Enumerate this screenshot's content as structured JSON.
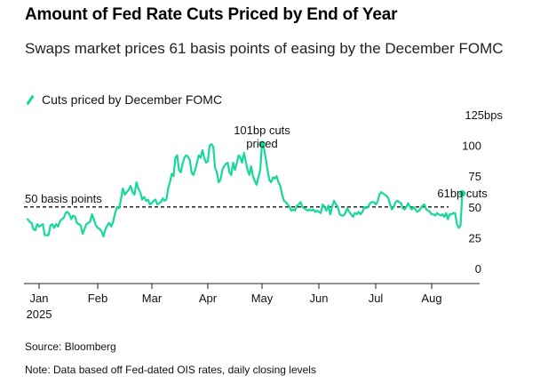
{
  "chart_data": {
    "type": "line",
    "title": "Amount of Fed Rate Cuts Priced by End of Year",
    "subtitle": "Swaps market prices 61 basis points of easing by the December FOMC",
    "legend": [
      "Cuts priced by December FOMC"
    ],
    "y_unit_label": "125bps",
    "y_ticks": [
      0,
      25,
      50,
      75,
      100
    ],
    "ylim": [
      0,
      125
    ],
    "x_ticks": [
      {
        "label": "Jan",
        "day": 8
      },
      {
        "label": "Feb",
        "day": 39
      },
      {
        "label": "Mar",
        "day": 67
      },
      {
        "label": "Apr",
        "day": 98
      },
      {
        "label": "May",
        "day": 128
      },
      {
        "label": "Jun",
        "day": 159
      },
      {
        "label": "Jul",
        "day": 189
      },
      {
        "label": "Aug",
        "day": 220
      }
    ],
    "x_year_label": "2025",
    "xlim": [
      0,
      230
    ],
    "reference_line": {
      "value": 50,
      "label": "50 basis points"
    },
    "series": [
      {
        "name": "Cuts priced by December FOMC",
        "color": "#16d89a",
        "points": [
          [
            2,
            40
          ],
          [
            3,
            38
          ],
          [
            4,
            37
          ],
          [
            5,
            32
          ],
          [
            6,
            31
          ],
          [
            7,
            36
          ],
          [
            8,
            34
          ],
          [
            9,
            35
          ],
          [
            10,
            36
          ],
          [
            11,
            27
          ],
          [
            12,
            27
          ],
          [
            13,
            27
          ],
          [
            14,
            35
          ],
          [
            15,
            36
          ],
          [
            16,
            33
          ],
          [
            17,
            36
          ],
          [
            18,
            34
          ],
          [
            19,
            38
          ],
          [
            20,
            40
          ],
          [
            21,
            41
          ],
          [
            22,
            45
          ],
          [
            23,
            46
          ],
          [
            24,
            44
          ],
          [
            25,
            40
          ],
          [
            26,
            43
          ],
          [
            27,
            42
          ],
          [
            28,
            37
          ],
          [
            29,
            36
          ],
          [
            30,
            35
          ],
          [
            31,
            28
          ],
          [
            32,
            32
          ],
          [
            33,
            36
          ],
          [
            34,
            37
          ],
          [
            35,
            38
          ],
          [
            36,
            44
          ],
          [
            37,
            40
          ],
          [
            38,
            35
          ],
          [
            39,
            33
          ],
          [
            40,
            32
          ],
          [
            41,
            30
          ],
          [
            42,
            26
          ],
          [
            43,
            32
          ],
          [
            44,
            35
          ],
          [
            45,
            37
          ],
          [
            46,
            34
          ],
          [
            47,
            38
          ],
          [
            48,
            45
          ],
          [
            49,
            50
          ],
          [
            50,
            49
          ],
          [
            51,
            56
          ],
          [
            52,
            65
          ],
          [
            53,
            60
          ],
          [
            54,
            62
          ],
          [
            55,
            64
          ],
          [
            56,
            67
          ],
          [
            57,
            62
          ],
          [
            58,
            60
          ],
          [
            59,
            70
          ],
          [
            60,
            65
          ],
          [
            61,
            62
          ],
          [
            62,
            56
          ],
          [
            63,
            58
          ],
          [
            64,
            55
          ],
          [
            65,
            56
          ],
          [
            66,
            52
          ],
          [
            67,
            53
          ],
          [
            68,
            55
          ],
          [
            69,
            56
          ],
          [
            70,
            52
          ],
          [
            71,
            53
          ],
          [
            72,
            54
          ],
          [
            73,
            57
          ],
          [
            74,
            55
          ],
          [
            75,
            56
          ],
          [
            76,
            65
          ],
          [
            77,
            70
          ],
          [
            78,
            77
          ],
          [
            79,
            75
          ],
          [
            80,
            90
          ],
          [
            81,
            92
          ],
          [
            82,
            80
          ],
          [
            83,
            78
          ],
          [
            84,
            85
          ],
          [
            85,
            90
          ],
          [
            86,
            92
          ],
          [
            87,
            91
          ],
          [
            88,
            88
          ],
          [
            89,
            78
          ],
          [
            90,
            76
          ],
          [
            91,
            80
          ],
          [
            92,
            86
          ],
          [
            93,
            92
          ],
          [
            94,
            90
          ],
          [
            95,
            96
          ],
          [
            96,
            90
          ],
          [
            97,
            86
          ],
          [
            98,
            87
          ],
          [
            99,
            100
          ],
          [
            100,
            101
          ],
          [
            101,
            99
          ],
          [
            102,
            82
          ],
          [
            103,
            78
          ],
          [
            104,
            70
          ],
          [
            105,
            72
          ],
          [
            106,
            80
          ],
          [
            107,
            83
          ],
          [
            108,
            85
          ],
          [
            109,
            86
          ],
          [
            110,
            78
          ],
          [
            111,
            76
          ],
          [
            112,
            86
          ],
          [
            113,
            80
          ],
          [
            114,
            85
          ],
          [
            115,
            92
          ],
          [
            116,
            90
          ],
          [
            117,
            86
          ],
          [
            118,
            94
          ],
          [
            119,
            87
          ],
          [
            120,
            80
          ],
          [
            121,
            76
          ],
          [
            122,
            83
          ],
          [
            123,
            75
          ],
          [
            124,
            71
          ],
          [
            125,
            68
          ],
          [
            126,
            74
          ],
          [
            127,
            80
          ],
          [
            128,
            101
          ],
          [
            129,
            98
          ],
          [
            130,
            90
          ],
          [
            131,
            80
          ],
          [
            132,
            72
          ],
          [
            133,
            70
          ],
          [
            134,
            74
          ],
          [
            135,
            73
          ],
          [
            136,
            75
          ],
          [
            137,
            70
          ],
          [
            138,
            67
          ],
          [
            139,
            60
          ],
          [
            140,
            55
          ],
          [
            141,
            54
          ],
          [
            142,
            52
          ],
          [
            143,
            50
          ],
          [
            144,
            47
          ],
          [
            145,
            48
          ],
          [
            146,
            47
          ],
          [
            147,
            51
          ],
          [
            148,
            52
          ],
          [
            149,
            54
          ],
          [
            150,
            50
          ],
          [
            151,
            49
          ],
          [
            152,
            48
          ],
          [
            153,
            47
          ],
          [
            154,
            48
          ],
          [
            155,
            47
          ],
          [
            156,
            48
          ],
          [
            157,
            46
          ],
          [
            158,
            47
          ],
          [
            159,
            46
          ],
          [
            160,
            45
          ],
          [
            161,
            52
          ],
          [
            162,
            50
          ],
          [
            163,
            47
          ],
          [
            164,
            51
          ],
          [
            165,
            44
          ],
          [
            166,
            50
          ],
          [
            167,
            55
          ],
          [
            168,
            52
          ],
          [
            169,
            50
          ],
          [
            170,
            44
          ],
          [
            171,
            43
          ],
          [
            172,
            43
          ],
          [
            173,
            45
          ],
          [
            174,
            49
          ],
          [
            175,
            46
          ],
          [
            176,
            44
          ],
          [
            177,
            42
          ],
          [
            178,
            45
          ],
          [
            179,
            44
          ],
          [
            180,
            46
          ],
          [
            181,
            44
          ],
          [
            182,
            46
          ],
          [
            183,
            50
          ],
          [
            184,
            49
          ],
          [
            185,
            50
          ],
          [
            186,
            53
          ],
          [
            187,
            54
          ],
          [
            188,
            54
          ],
          [
            189,
            52
          ],
          [
            190,
            54
          ],
          [
            191,
            60
          ],
          [
            192,
            62
          ],
          [
            193,
            61
          ],
          [
            194,
            60
          ],
          [
            195,
            59
          ],
          [
            196,
            57
          ],
          [
            197,
            52
          ],
          [
            198,
            48
          ],
          [
            199,
            50
          ],
          [
            200,
            54
          ],
          [
            201,
            55
          ],
          [
            202,
            54
          ],
          [
            203,
            53
          ],
          [
            204,
            49
          ],
          [
            205,
            48
          ],
          [
            206,
            50
          ],
          [
            207,
            53
          ],
          [
            208,
            50
          ],
          [
            209,
            48
          ],
          [
            210,
            50
          ],
          [
            211,
            48
          ],
          [
            212,
            46
          ],
          [
            213,
            47
          ],
          [
            214,
            49
          ],
          [
            215,
            51
          ],
          [
            216,
            52
          ],
          [
            217,
            48
          ],
          [
            218,
            47
          ],
          [
            219,
            46
          ],
          [
            220,
            44
          ],
          [
            221,
            44
          ],
          [
            222,
            43
          ],
          [
            223,
            45
          ],
          [
            224,
            44
          ],
          [
            225,
            43
          ],
          [
            226,
            44
          ],
          [
            227,
            42
          ],
          [
            228,
            45
          ],
          [
            229,
            40
          ],
          [
            230,
            44
          ],
          [
            231,
            44
          ],
          [
            232,
            45
          ],
          [
            233,
            45
          ],
          [
            234,
            36
          ],
          [
            235,
            33
          ],
          [
            236,
            35
          ],
          [
            237,
            61
          ]
        ]
      }
    ],
    "annotations": [
      {
        "text_lines": [
          "101bp cuts",
          "priced"
        ],
        "day": 128,
        "value": 101
      },
      {
        "text_lines": [
          "61bp cuts"
        ],
        "day": 237,
        "value": 61
      }
    ]
  },
  "source": "Source: Bloomberg",
  "note": "Note: Data based off Fed-dated OIS rates, daily closing levels"
}
